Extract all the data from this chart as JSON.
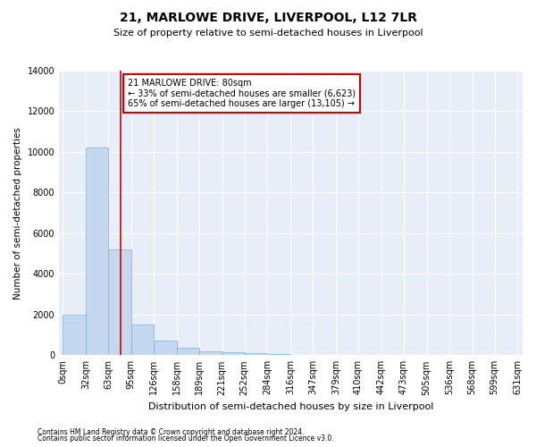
{
  "title": "21, MARLOWE DRIVE, LIVERPOOL, L12 7LR",
  "subtitle": "Size of property relative to semi-detached houses in Liverpool",
  "xlabel": "Distribution of semi-detached houses by size in Liverpool",
  "ylabel": "Number of semi-detached properties",
  "footnote1": "Contains HM Land Registry data © Crown copyright and database right 2024.",
  "footnote2": "Contains public sector information licensed under the Open Government Licence v3.0.",
  "annotation_line1": "21 MARLOWE DRIVE: 80sqm",
  "annotation_line2": "← 33% of semi-detached houses are smaller (6,623)",
  "annotation_line3": "65% of semi-detached houses are larger (13,105) →",
  "property_size": 80,
  "bin_starts": [
    0,
    32,
    63,
    95,
    126,
    158,
    189,
    221,
    252,
    284,
    316,
    347,
    379,
    410,
    442,
    473,
    505,
    536,
    568,
    599
  ],
  "bin_widths": [
    32,
    31,
    32,
    31,
    32,
    31,
    32,
    31,
    32,
    32,
    31,
    32,
    31,
    32,
    31,
    32,
    31,
    32,
    31,
    32
  ],
  "bin_labels": [
    "0sqm",
    "32sqm",
    "63sqm",
    "95sqm",
    "126sqm",
    "158sqm",
    "189sqm",
    "221sqm",
    "252sqm",
    "284sqm",
    "316sqm",
    "347sqm",
    "379sqm",
    "410sqm",
    "442sqm",
    "473sqm",
    "505sqm",
    "536sqm",
    "568sqm",
    "599sqm",
    "631sqm"
  ],
  "bar_heights": [
    1980,
    10200,
    5200,
    1500,
    700,
    380,
    200,
    130,
    110,
    60,
    30,
    15,
    8,
    5,
    3,
    2,
    1,
    1,
    0,
    0
  ],
  "bar_color": "#c5d8f0",
  "bar_edge_color": "#7bafd4",
  "red_line_color": "#cc0000",
  "annotation_box_edge_color": "#cc0000",
  "background_color": "#e8eef8",
  "grid_color": "#ffffff",
  "ylim": [
    0,
    14000
  ],
  "yticks": [
    0,
    2000,
    4000,
    6000,
    8000,
    10000,
    12000,
    14000
  ],
  "xlim_left": -5,
  "xlim_right": 638,
  "title_fontsize": 10,
  "subtitle_fontsize": 8,
  "ylabel_fontsize": 7.5,
  "xlabel_fontsize": 8,
  "tick_fontsize": 7,
  "annotation_fontsize": 7,
  "footnote_fontsize": 5.5
}
